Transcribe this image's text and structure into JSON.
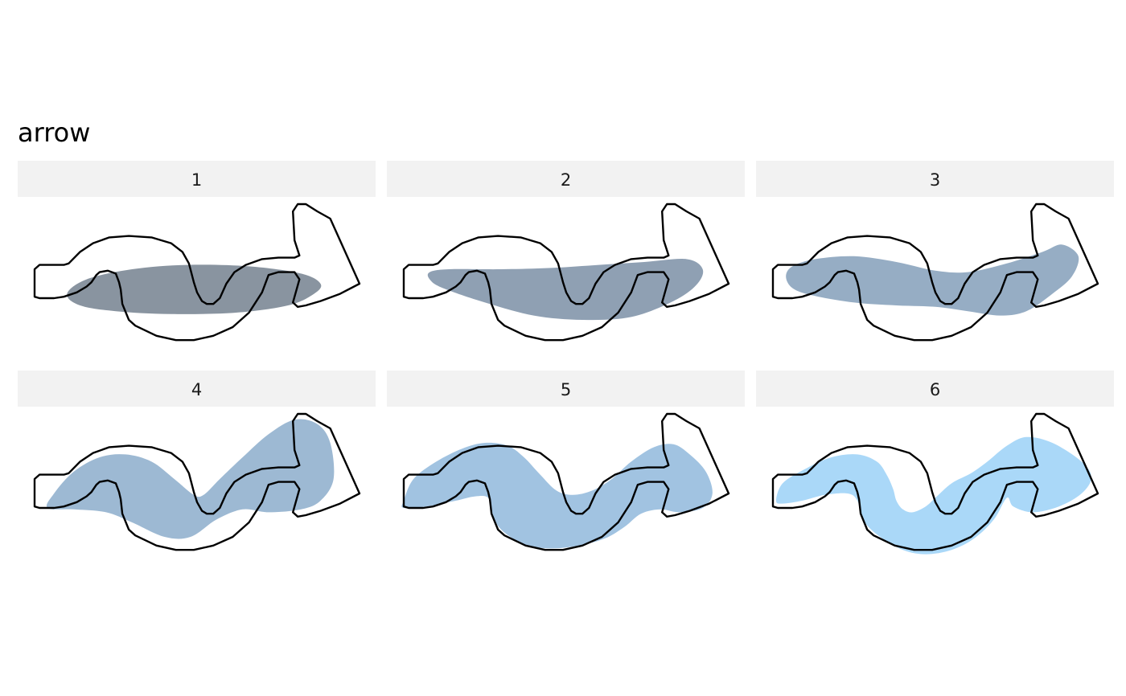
{
  "title": "arrow",
  "outline": {
    "name": "arrow",
    "stroke": "#000000",
    "points": [
      [
        0.0,
        0.45
      ],
      [
        0.015,
        0.42
      ],
      [
        0.09,
        0.42
      ],
      [
        0.105,
        0.41
      ],
      [
        0.14,
        0.33
      ],
      [
        0.18,
        0.27
      ],
      [
        0.23,
        0.23
      ],
      [
        0.29,
        0.22
      ],
      [
        0.36,
        0.23
      ],
      [
        0.42,
        0.27
      ],
      [
        0.455,
        0.33
      ],
      [
        0.475,
        0.41
      ],
      [
        0.49,
        0.54
      ],
      [
        0.5,
        0.61
      ],
      [
        0.515,
        0.67
      ],
      [
        0.53,
        0.69
      ],
      [
        0.55,
        0.69
      ],
      [
        0.57,
        0.65
      ],
      [
        0.59,
        0.55
      ],
      [
        0.615,
        0.47
      ],
      [
        0.65,
        0.42
      ],
      [
        0.7,
        0.38
      ],
      [
        0.75,
        0.37
      ],
      [
        0.8,
        0.37
      ],
      [
        0.815,
        0.355
      ],
      [
        0.8,
        0.25
      ],
      [
        0.795,
        0.05
      ],
      [
        0.81,
        0.0
      ],
      [
        0.835,
        0.0
      ],
      [
        0.87,
        0.05
      ],
      [
        0.91,
        0.1
      ],
      [
        1.0,
        0.55
      ],
      [
        0.94,
        0.62
      ],
      [
        0.88,
        0.67
      ],
      [
        0.835,
        0.7
      ],
      [
        0.81,
        0.71
      ],
      [
        0.795,
        0.68
      ],
      [
        0.815,
        0.52
      ],
      [
        0.8,
        0.47
      ],
      [
        0.75,
        0.47
      ],
      [
        0.72,
        0.49
      ],
      [
        0.7,
        0.61
      ],
      [
        0.66,
        0.75
      ],
      [
        0.61,
        0.85
      ],
      [
        0.55,
        0.91
      ],
      [
        0.49,
        0.94
      ],
      [
        0.435,
        0.94
      ],
      [
        0.375,
        0.91
      ],
      [
        0.31,
        0.84
      ],
      [
        0.29,
        0.8
      ],
      [
        0.27,
        0.69
      ],
      [
        0.265,
        0.59
      ],
      [
        0.26,
        0.54
      ],
      [
        0.25,
        0.48
      ],
      [
        0.225,
        0.46
      ],
      [
        0.2,
        0.47
      ],
      [
        0.19,
        0.49
      ],
      [
        0.175,
        0.54
      ],
      [
        0.16,
        0.57
      ],
      [
        0.13,
        0.61
      ],
      [
        0.09,
        0.64
      ],
      [
        0.06,
        0.65
      ],
      [
        0.015,
        0.65
      ],
      [
        0.0,
        0.64
      ]
    ]
  },
  "panels": [
    {
      "label": "1",
      "fill": "#798593",
      "opacity": 0.88,
      "blob": [
        [
          0.1,
          0.62
        ],
        [
          0.16,
          0.52
        ],
        [
          0.3,
          0.45
        ],
        [
          0.47,
          0.42
        ],
        [
          0.66,
          0.43
        ],
        [
          0.82,
          0.48
        ],
        [
          0.88,
          0.55
        ],
        [
          0.86,
          0.62
        ],
        [
          0.78,
          0.7
        ],
        [
          0.62,
          0.75
        ],
        [
          0.42,
          0.76
        ],
        [
          0.25,
          0.74
        ],
        [
          0.14,
          0.7
        ]
      ]
    },
    {
      "label": "2",
      "fill": "#7d90a6",
      "opacity": 0.86,
      "blob": [
        [
          0.08,
          0.47
        ],
        [
          0.14,
          0.45
        ],
        [
          0.3,
          0.45
        ],
        [
          0.46,
          0.44
        ],
        [
          0.6,
          0.42
        ],
        [
          0.74,
          0.4
        ],
        [
          0.87,
          0.38
        ],
        [
          0.92,
          0.45
        ],
        [
          0.9,
          0.56
        ],
        [
          0.83,
          0.67
        ],
        [
          0.7,
          0.78
        ],
        [
          0.55,
          0.8
        ],
        [
          0.4,
          0.77
        ],
        [
          0.25,
          0.68
        ],
        [
          0.12,
          0.58
        ],
        [
          0.08,
          0.52
        ]
      ]
    },
    {
      "label": "3",
      "fill": "#7f9bb7",
      "opacity": 0.82,
      "blob": [
        [
          0.04,
          0.5
        ],
        [
          0.06,
          0.43
        ],
        [
          0.13,
          0.38
        ],
        [
          0.25,
          0.36
        ],
        [
          0.38,
          0.4
        ],
        [
          0.5,
          0.46
        ],
        [
          0.6,
          0.47
        ],
        [
          0.72,
          0.41
        ],
        [
          0.83,
          0.33
        ],
        [
          0.89,
          0.28
        ],
        [
          0.94,
          0.36
        ],
        [
          0.92,
          0.5
        ],
        [
          0.86,
          0.62
        ],
        [
          0.78,
          0.74
        ],
        [
          0.7,
          0.77
        ],
        [
          0.6,
          0.74
        ],
        [
          0.5,
          0.71
        ],
        [
          0.38,
          0.7
        ],
        [
          0.25,
          0.68
        ],
        [
          0.12,
          0.63
        ],
        [
          0.06,
          0.58
        ]
      ]
    },
    {
      "label": "4",
      "fill": "#85a7c8",
      "opacity": 0.8,
      "blob": [
        [
          0.04,
          0.65
        ],
        [
          0.06,
          0.55
        ],
        [
          0.12,
          0.4
        ],
        [
          0.2,
          0.3
        ],
        [
          0.28,
          0.28
        ],
        [
          0.36,
          0.33
        ],
        [
          0.43,
          0.45
        ],
        [
          0.49,
          0.56
        ],
        [
          0.52,
          0.56
        ],
        [
          0.57,
          0.45
        ],
        [
          0.64,
          0.3
        ],
        [
          0.72,
          0.14
        ],
        [
          0.8,
          0.04
        ],
        [
          0.87,
          0.07
        ],
        [
          0.91,
          0.2
        ],
        [
          0.92,
          0.45
        ],
        [
          0.88,
          0.6
        ],
        [
          0.82,
          0.66
        ],
        [
          0.72,
          0.68
        ],
        [
          0.64,
          0.66
        ],
        [
          0.56,
          0.73
        ],
        [
          0.48,
          0.85
        ],
        [
          0.4,
          0.85
        ],
        [
          0.3,
          0.75
        ],
        [
          0.22,
          0.68
        ],
        [
          0.12,
          0.66
        ]
      ]
    },
    {
      "label": "5",
      "fill": "#8ab4da",
      "opacity": 0.8,
      "blob": [
        [
          0.0,
          0.6
        ],
        [
          0.03,
          0.45
        ],
        [
          0.1,
          0.33
        ],
        [
          0.18,
          0.24
        ],
        [
          0.25,
          0.2
        ],
        [
          0.32,
          0.22
        ],
        [
          0.37,
          0.3
        ],
        [
          0.42,
          0.42
        ],
        [
          0.47,
          0.53
        ],
        [
          0.52,
          0.56
        ],
        [
          0.58,
          0.53
        ],
        [
          0.64,
          0.45
        ],
        [
          0.7,
          0.33
        ],
        [
          0.77,
          0.23
        ],
        [
          0.83,
          0.21
        ],
        [
          0.88,
          0.28
        ],
        [
          0.93,
          0.4
        ],
        [
          0.95,
          0.55
        ],
        [
          0.92,
          0.65
        ],
        [
          0.85,
          0.68
        ],
        [
          0.79,
          0.66
        ],
        [
          0.73,
          0.69
        ],
        [
          0.68,
          0.78
        ],
        [
          0.62,
          0.86
        ],
        [
          0.54,
          0.91
        ],
        [
          0.45,
          0.93
        ],
        [
          0.37,
          0.9
        ],
        [
          0.3,
          0.8
        ],
        [
          0.27,
          0.68
        ],
        [
          0.26,
          0.58
        ],
        [
          0.22,
          0.57
        ],
        [
          0.16,
          0.6
        ],
        [
          0.07,
          0.64
        ],
        [
          0.0,
          0.65
        ]
      ]
    },
    {
      "label": "6",
      "fill": "#92cdf6",
      "opacity": 0.78,
      "blob": [
        [
          0.01,
          0.6
        ],
        [
          0.03,
          0.48
        ],
        [
          0.1,
          0.38
        ],
        [
          0.18,
          0.3
        ],
        [
          0.26,
          0.28
        ],
        [
          0.32,
          0.33
        ],
        [
          0.35,
          0.42
        ],
        [
          0.37,
          0.52
        ],
        [
          0.38,
          0.6
        ],
        [
          0.4,
          0.66
        ],
        [
          0.43,
          0.68
        ],
        [
          0.47,
          0.64
        ],
        [
          0.5,
          0.58
        ],
        [
          0.55,
          0.48
        ],
        [
          0.61,
          0.41
        ],
        [
          0.66,
          0.33
        ],
        [
          0.72,
          0.22
        ],
        [
          0.78,
          0.16
        ],
        [
          0.86,
          0.2
        ],
        [
          0.95,
          0.33
        ],
        [
          0.98,
          0.44
        ],
        [
          0.95,
          0.55
        ],
        [
          0.88,
          0.64
        ],
        [
          0.8,
          0.68
        ],
        [
          0.74,
          0.64
        ],
        [
          0.72,
          0.58
        ],
        [
          0.68,
          0.73
        ],
        [
          0.62,
          0.86
        ],
        [
          0.55,
          0.94
        ],
        [
          0.47,
          0.97
        ],
        [
          0.4,
          0.94
        ],
        [
          0.33,
          0.85
        ],
        [
          0.28,
          0.74
        ],
        [
          0.26,
          0.6
        ],
        [
          0.23,
          0.55
        ],
        [
          0.16,
          0.56
        ],
        [
          0.09,
          0.6
        ],
        [
          0.03,
          0.62
        ]
      ]
    }
  ]
}
